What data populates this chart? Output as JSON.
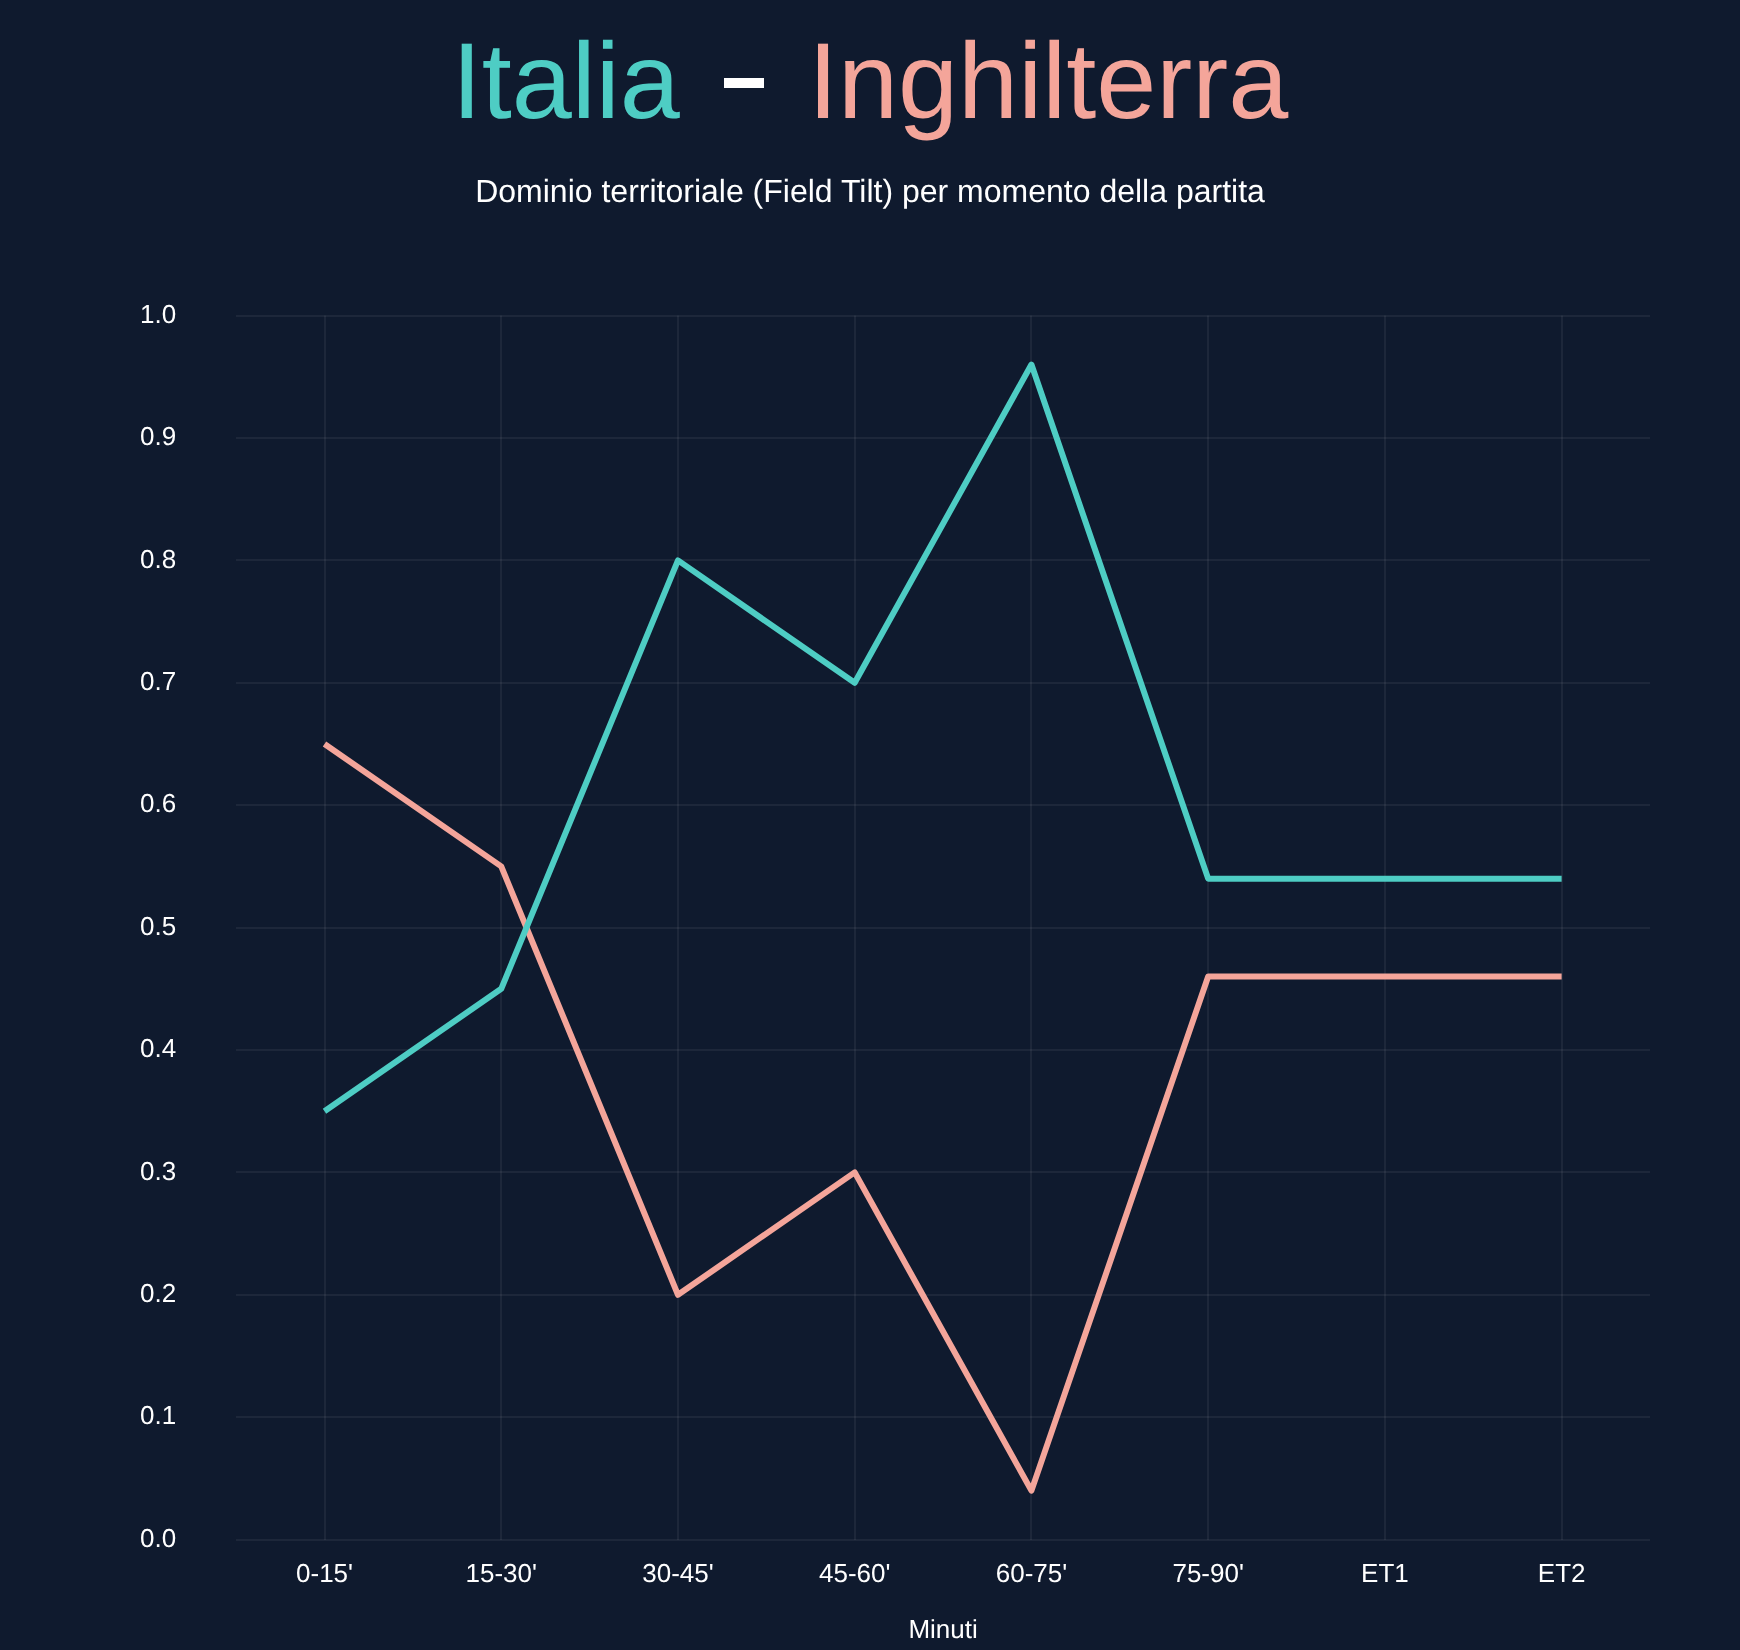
{
  "chart_data": {
    "type": "line",
    "subtitle": "Dominio territoriale (Field Tilt) per momento della partita",
    "xlabel": "Minuti",
    "categories": [
      "0-15'",
      "15-30'",
      "30-45'",
      "45-60'",
      "60-75'",
      "75-90'",
      "ET1",
      "ET2"
    ],
    "series": [
      {
        "name": "Italia",
        "color": "#4ecdc4",
        "values": [
          0.35,
          0.45,
          0.8,
          0.7,
          0.96,
          0.54,
          0.54,
          0.54
        ]
      },
      {
        "name": "Inghilterra",
        "color": "#f4a59a",
        "values": [
          0.65,
          0.55,
          0.2,
          0.3,
          0.04,
          0.46,
          0.46,
          0.46
        ]
      }
    ],
    "ylim": [
      0,
      1
    ],
    "yticks": [
      {
        "value": 0,
        "label": "0.0"
      },
      {
        "value": 0.1,
        "label": "0.1"
      },
      {
        "value": 0.2,
        "label": "0.2"
      },
      {
        "value": 0.3,
        "label": "0.3"
      },
      {
        "value": 0.4,
        "label": "0.4"
      },
      {
        "value": 0.5,
        "label": "0.5"
      },
      {
        "value": 0.6,
        "label": "0.6"
      },
      {
        "value": 0.7,
        "label": "0.7"
      },
      {
        "value": 0.8,
        "label": "0.8"
      },
      {
        "value": 0.9,
        "label": "0.9"
      },
      {
        "value": 1,
        "label": "1.0"
      }
    ],
    "grid": true,
    "legend": "top",
    "marker": "none",
    "line_style": "solid"
  }
}
